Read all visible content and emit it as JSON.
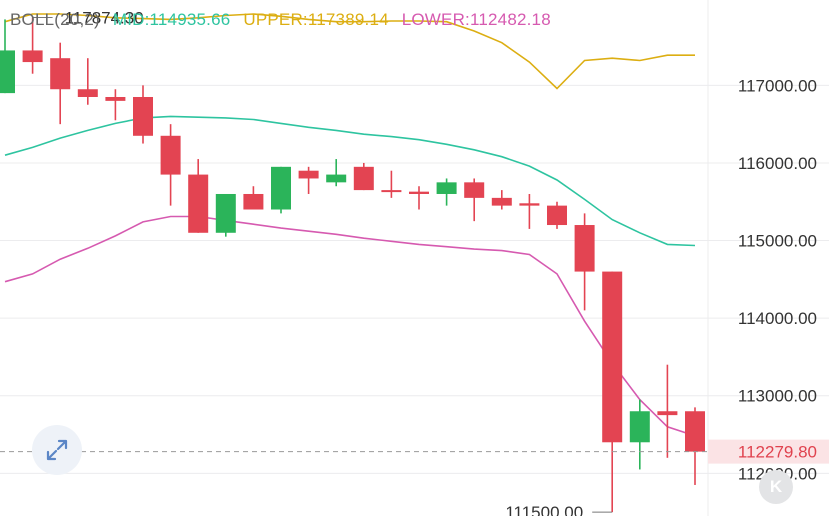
{
  "legend": {
    "name": "BOLL(20,2)",
    "mid": "MID:114935.66",
    "upper": "UPPER:117389.14",
    "lower": "LOWER:112482.18"
  },
  "colors": {
    "mid": "#2ec4a0",
    "upper": "#dcae12",
    "lower": "#d65ab0",
    "up": "#2bb45a",
    "down": "#e34452",
    "grid": "#ececee",
    "axis_text": "#333333",
    "current_price_text": "#e0424e",
    "current_price_bg": "#fbe3e5"
  },
  "icons": {
    "expand": "expand-diagonal-icon",
    "kline": "k-logo-icon"
  },
  "kline_button_label": "K",
  "chart_data": {
    "type": "candlestick",
    "y_axis": {
      "range": [
        111450,
        118100
      ],
      "ticks": [
        112000,
        113000,
        114000,
        115000,
        116000,
        117000
      ],
      "tick_labels": [
        "112000.00",
        "113000.00",
        "114000.00",
        "115000.00",
        "116000.00",
        "117000.00"
      ],
      "position": "right"
    },
    "current_price": {
      "value": 112279.8,
      "label": "112279.80"
    },
    "annotations": [
      {
        "label": "117874.30",
        "value": 117874.3,
        "candle_index": 1
      },
      {
        "label": "111500.00",
        "value": 111500,
        "candle_index": 22
      }
    ],
    "candles": [
      {
        "open": 116900,
        "high": 117850,
        "low": 116900,
        "close": 117450
      },
      {
        "open": 117450,
        "high": 117874.3,
        "low": 117150,
        "close": 117300
      },
      {
        "open": 117350,
        "high": 117550,
        "low": 116500,
        "close": 116950
      },
      {
        "open": 116950,
        "high": 117350,
        "low": 116750,
        "close": 116850
      },
      {
        "open": 116850,
        "high": 116950,
        "low": 116550,
        "close": 116800
      },
      {
        "open": 116850,
        "high": 117000,
        "low": 116250,
        "close": 116350
      },
      {
        "open": 116350,
        "high": 116500,
        "low": 115450,
        "close": 115850
      },
      {
        "open": 115850,
        "high": 116050,
        "low": 115100,
        "close": 115100
      },
      {
        "open": 115100,
        "high": 115600,
        "low": 115050,
        "close": 115600
      },
      {
        "open": 115600,
        "high": 115700,
        "low": 115400,
        "close": 115400
      },
      {
        "open": 115400,
        "high": 115950,
        "low": 115350,
        "close": 115950
      },
      {
        "open": 115900,
        "high": 115950,
        "low": 115600,
        "close": 115800
      },
      {
        "open": 115750,
        "high": 116050,
        "low": 115700,
        "close": 115850
      },
      {
        "open": 115950,
        "high": 116000,
        "low": 115650,
        "close": 115650
      },
      {
        "open": 115650,
        "high": 115900,
        "low": 115550,
        "close": 115630
      },
      {
        "open": 115630,
        "high": 115700,
        "low": 115400,
        "close": 115600
      },
      {
        "open": 115600,
        "high": 115800,
        "low": 115450,
        "close": 115750
      },
      {
        "open": 115750,
        "high": 115800,
        "low": 115250,
        "close": 115550
      },
      {
        "open": 115550,
        "high": 115650,
        "low": 115400,
        "close": 115450
      },
      {
        "open": 115480,
        "high": 115600,
        "low": 115150,
        "close": 115450
      },
      {
        "open": 115450,
        "high": 115500,
        "low": 115150,
        "close": 115200
      },
      {
        "open": 115200,
        "high": 115350,
        "low": 114100,
        "close": 114600
      },
      {
        "open": 114600,
        "high": 114600,
        "low": 111500,
        "close": 112400
      },
      {
        "open": 112400,
        "high": 112950,
        "low": 112050,
        "close": 112800
      },
      {
        "open": 112800,
        "high": 113400,
        "low": 112200,
        "close": 112750
      },
      {
        "open": 112800,
        "high": 112850,
        "low": 111850,
        "close": 112279.8
      }
    ],
    "series": [
      {
        "name": "MID",
        "values": [
          116100,
          116200,
          116320,
          116420,
          116510,
          116580,
          116600,
          116590,
          116580,
          116560,
          116510,
          116460,
          116420,
          116370,
          116340,
          116300,
          116240,
          116170,
          116080,
          115960,
          115780,
          115530,
          115270,
          115100,
          114950,
          114935.66
        ]
      },
      {
        "name": "UPPER",
        "values": [
          117820,
          117920,
          117920,
          117900,
          117870,
          117860,
          117850,
          117870,
          117900,
          117920,
          117890,
          117850,
          117820,
          117820,
          117830,
          117830,
          117820,
          117700,
          117550,
          117300,
          116960,
          117320,
          117350,
          117320,
          117389.14,
          117389.14
        ]
      },
      {
        "name": "LOWER",
        "values": [
          114470,
          114570,
          114760,
          114900,
          115060,
          115240,
          115310,
          115310,
          115260,
          115210,
          115160,
          115120,
          115080,
          115030,
          114990,
          114950,
          114920,
          114890,
          114870,
          114820,
          114570,
          113960,
          113420,
          112950,
          112600,
          112482.18
        ]
      }
    ]
  }
}
